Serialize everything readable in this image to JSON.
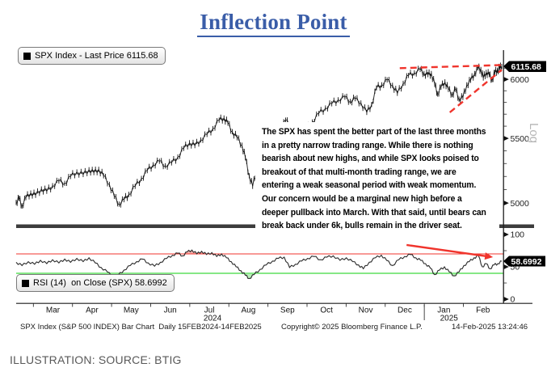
{
  "title": {
    "text": "Inflection Point"
  },
  "caption": "ILLUSTRATION: SOURCE: BTIG",
  "legends": {
    "spx": "SPX Index - Last Price 6115.68",
    "rsi": "RSI (14)  on Close (SPX) 58.6992"
  },
  "annotation": {
    "lines": [
      "The SPX has spent the better part of the last three months",
      "in a pretty narrow trading range. While there is nothing",
      "bearish about new highs, and while SPX looks poised to",
      "breakout of that multi-month trading range, we are",
      "entering a weak seasonal period with weak momentum.",
      "Our concern would be a marginal new high before a",
      "deeper pullback into March. With that said, until bears can",
      "break back under 6k, bulls remain in the driver seat."
    ]
  },
  "footer": {
    "left": "SPX Index (S&P 500 INDEX) Bar Chart  Daily 15FEB2024-14FEB2025",
    "center": "Copyright© 2025 Bloomberg Finance L.P.",
    "right": "14-Feb-2025 13:24:46"
  },
  "colors": {
    "accent_red": "#f0342c",
    "oversold_green": "#86e886",
    "shade_red": "#f5b0ac",
    "shade_green": "#b9efb9",
    "title_blue": "#3a5da8",
    "bar_black": "#151515"
  },
  "chart_data": [
    {
      "type": "bar",
      "name": "SPX Index price panel",
      "title": "SPX Index - Last Price 6115.68",
      "yscale": "log",
      "yscale_label": "Log",
      "ylim": [
        4900,
        6250
      ],
      "yticks": [
        5000,
        5500,
        6000
      ],
      "yticks_minor": [
        5100,
        5200,
        5300,
        5400,
        5600,
        5700,
        5800,
        5900,
        6100
      ],
      "last_price": 6115.68,
      "last_label": "6115.68",
      "x_months": [
        "Mar",
        "Apr",
        "May",
        "Jun",
        "Jul",
        "Aug",
        "Sep",
        "Oct",
        "Nov",
        "Dec",
        "Jan",
        "Feb"
      ],
      "x_years": [
        "2024",
        "2025"
      ],
      "series": [
        [
          0.0,
          5005
        ],
        [
          0.006,
          5035
        ],
        [
          0.012,
          4978
        ],
        [
          0.02,
          5040
        ],
        [
          0.03,
          5075
        ],
        [
          0.04,
          5058
        ],
        [
          0.052,
          5105
        ],
        [
          0.063,
          5088
        ],
        [
          0.075,
          5130
        ],
        [
          0.088,
          5165
        ],
        [
          0.1,
          5148
        ],
        [
          0.112,
          5200
        ],
        [
          0.125,
          5235
        ],
        [
          0.138,
          5215
        ],
        [
          0.15,
          5252
        ],
        [
          0.16,
          5230
        ],
        [
          0.17,
          5255
        ],
        [
          0.18,
          5205
        ],
        [
          0.192,
          5140
        ],
        [
          0.202,
          5050
        ],
        [
          0.212,
          4992
        ],
        [
          0.222,
          5025
        ],
        [
          0.232,
          5065
        ],
        [
          0.245,
          5125
        ],
        [
          0.258,
          5185
        ],
        [
          0.27,
          5245
        ],
        [
          0.282,
          5290
        ],
        [
          0.295,
          5318
        ],
        [
          0.307,
          5282
        ],
        [
          0.32,
          5305
        ],
        [
          0.333,
          5352
        ],
        [
          0.345,
          5420
        ],
        [
          0.357,
          5465
        ],
        [
          0.368,
          5442
        ],
        [
          0.38,
          5488
        ],
        [
          0.393,
          5532
        ],
        [
          0.405,
          5580
        ],
        [
          0.418,
          5650
        ],
        [
          0.428,
          5668
        ],
        [
          0.436,
          5625
        ],
        [
          0.445,
          5555
        ],
        [
          0.455,
          5505
        ],
        [
          0.465,
          5445
        ],
        [
          0.472,
          5345
        ],
        [
          0.48,
          5205
        ],
        [
          0.487,
          5125
        ],
        [
          0.495,
          5245
        ],
        [
          0.505,
          5330
        ],
        [
          0.517,
          5395
        ],
        [
          0.53,
          5460
        ],
        [
          0.543,
          5555
        ],
        [
          0.555,
          5650
        ],
        [
          0.565,
          5600
        ],
        [
          0.575,
          5425
        ],
        [
          0.585,
          5500
        ],
        [
          0.597,
          5575
        ],
        [
          0.61,
          5635
        ],
        [
          0.623,
          5705
        ],
        [
          0.637,
          5752
        ],
        [
          0.65,
          5788
        ],
        [
          0.663,
          5822
        ],
        [
          0.677,
          5845
        ],
        [
          0.688,
          5808
        ],
        [
          0.698,
          5832
        ],
        [
          0.71,
          5795
        ],
        [
          0.722,
          5715
        ],
        [
          0.732,
          5782
        ],
        [
          0.742,
          5925
        ],
        [
          0.753,
          5952
        ],
        [
          0.764,
          5995
        ],
        [
          0.775,
          5948
        ],
        [
          0.785,
          5878
        ],
        [
          0.797,
          5965
        ],
        [
          0.808,
          6035
        ],
        [
          0.82,
          6058
        ],
        [
          0.832,
          6088
        ],
        [
          0.84,
          6052
        ],
        [
          0.848,
          6042
        ],
        [
          0.855,
          6052
        ],
        [
          0.862,
          5955
        ],
        [
          0.868,
          5872
        ],
        [
          0.875,
          5932
        ],
        [
          0.883,
          5978
        ],
        [
          0.89,
          5912
        ],
        [
          0.898,
          5868
        ],
        [
          0.905,
          5912
        ],
        [
          0.912,
          5828
        ],
        [
          0.92,
          5842
        ],
        [
          0.928,
          5952
        ],
        [
          0.936,
          5992
        ],
        [
          0.944,
          6052
        ],
        [
          0.951,
          6102
        ],
        [
          0.957,
          6088
        ],
        [
          0.962,
          6012
        ],
        [
          0.968,
          6062
        ],
        [
          0.974,
          6042
        ],
        [
          0.98,
          5998
        ],
        [
          0.986,
          6062
        ],
        [
          0.991,
          6082
        ],
        [
          0.996,
          6102
        ],
        [
          1.0,
          6115.68
        ]
      ],
      "trendlines": [
        {
          "from": [
            0.79,
            6100
          ],
          "to": [
            1.0,
            6128
          ]
        },
        {
          "from": [
            0.893,
            5715
          ],
          "to": [
            1.0,
            6085
          ]
        }
      ]
    },
    {
      "type": "line",
      "name": "RSI momentum panel",
      "title": "RSI (14) on Close (SPX) 58.6992",
      "ylim": [
        0,
        100
      ],
      "yticks": [
        0,
        50,
        100
      ],
      "yticks_minor": [
        25,
        75
      ],
      "overbought": 70,
      "oversold": 40,
      "last_value": 58.6992,
      "last_label": "58.6992",
      "series": [
        [
          0.0,
          57
        ],
        [
          0.012,
          52
        ],
        [
          0.025,
          58
        ],
        [
          0.038,
          54
        ],
        [
          0.05,
          60
        ],
        [
          0.063,
          55
        ],
        [
          0.075,
          61
        ],
        [
          0.088,
          56
        ],
        [
          0.1,
          62
        ],
        [
          0.112,
          57
        ],
        [
          0.125,
          63
        ],
        [
          0.138,
          58
        ],
        [
          0.15,
          64
        ],
        [
          0.163,
          56
        ],
        [
          0.175,
          49
        ],
        [
          0.188,
          42
        ],
        [
          0.2,
          34
        ],
        [
          0.21,
          37
        ],
        [
          0.222,
          45
        ],
        [
          0.235,
          52
        ],
        [
          0.248,
          58
        ],
        [
          0.26,
          62
        ],
        [
          0.272,
          56
        ],
        [
          0.285,
          51
        ],
        [
          0.297,
          57
        ],
        [
          0.31,
          63
        ],
        [
          0.322,
          68
        ],
        [
          0.333,
          71
        ],
        [
          0.343,
          67
        ],
        [
          0.352,
          73
        ],
        [
          0.362,
          76
        ],
        [
          0.372,
          70
        ],
        [
          0.382,
          74
        ],
        [
          0.392,
          69
        ],
        [
          0.403,
          72
        ],
        [
          0.413,
          66
        ],
        [
          0.423,
          70
        ],
        [
          0.433,
          64
        ],
        [
          0.443,
          58
        ],
        [
          0.453,
          50
        ],
        [
          0.463,
          44
        ],
        [
          0.472,
          37
        ],
        [
          0.48,
          32
        ],
        [
          0.49,
          38
        ],
        [
          0.502,
          46
        ],
        [
          0.515,
          53
        ],
        [
          0.528,
          59
        ],
        [
          0.54,
          63
        ],
        [
          0.552,
          65
        ],
        [
          0.563,
          49
        ],
        [
          0.575,
          54
        ],
        [
          0.588,
          59
        ],
        [
          0.6,
          63
        ],
        [
          0.613,
          66
        ],
        [
          0.627,
          61
        ],
        [
          0.64,
          65
        ],
        [
          0.653,
          67
        ],
        [
          0.667,
          60
        ],
        [
          0.68,
          64
        ],
        [
          0.693,
          58
        ],
        [
          0.705,
          53
        ],
        [
          0.715,
          47
        ],
        [
          0.727,
          57
        ],
        [
          0.74,
          64
        ],
        [
          0.752,
          68
        ],
        [
          0.763,
          60
        ],
        [
          0.775,
          52
        ],
        [
          0.788,
          61
        ],
        [
          0.8,
          66
        ],
        [
          0.812,
          69
        ],
        [
          0.823,
          64
        ],
        [
          0.833,
          60
        ],
        [
          0.843,
          55
        ],
        [
          0.853,
          48
        ],
        [
          0.862,
          38
        ],
        [
          0.872,
          45
        ],
        [
          0.882,
          50
        ],
        [
          0.892,
          42
        ],
        [
          0.902,
          36
        ],
        [
          0.912,
          42
        ],
        [
          0.922,
          52
        ],
        [
          0.933,
          58
        ],
        [
          0.943,
          64
        ],
        [
          0.952,
          67
        ],
        [
          0.96,
          50
        ],
        [
          0.968,
          55
        ],
        [
          0.976,
          47
        ],
        [
          0.984,
          53
        ],
        [
          0.992,
          55
        ],
        [
          1.0,
          58.7
        ]
      ],
      "arrow": {
        "from": [
          0.804,
          83.8
        ],
        "to": [
          0.982,
          65
        ]
      }
    }
  ]
}
